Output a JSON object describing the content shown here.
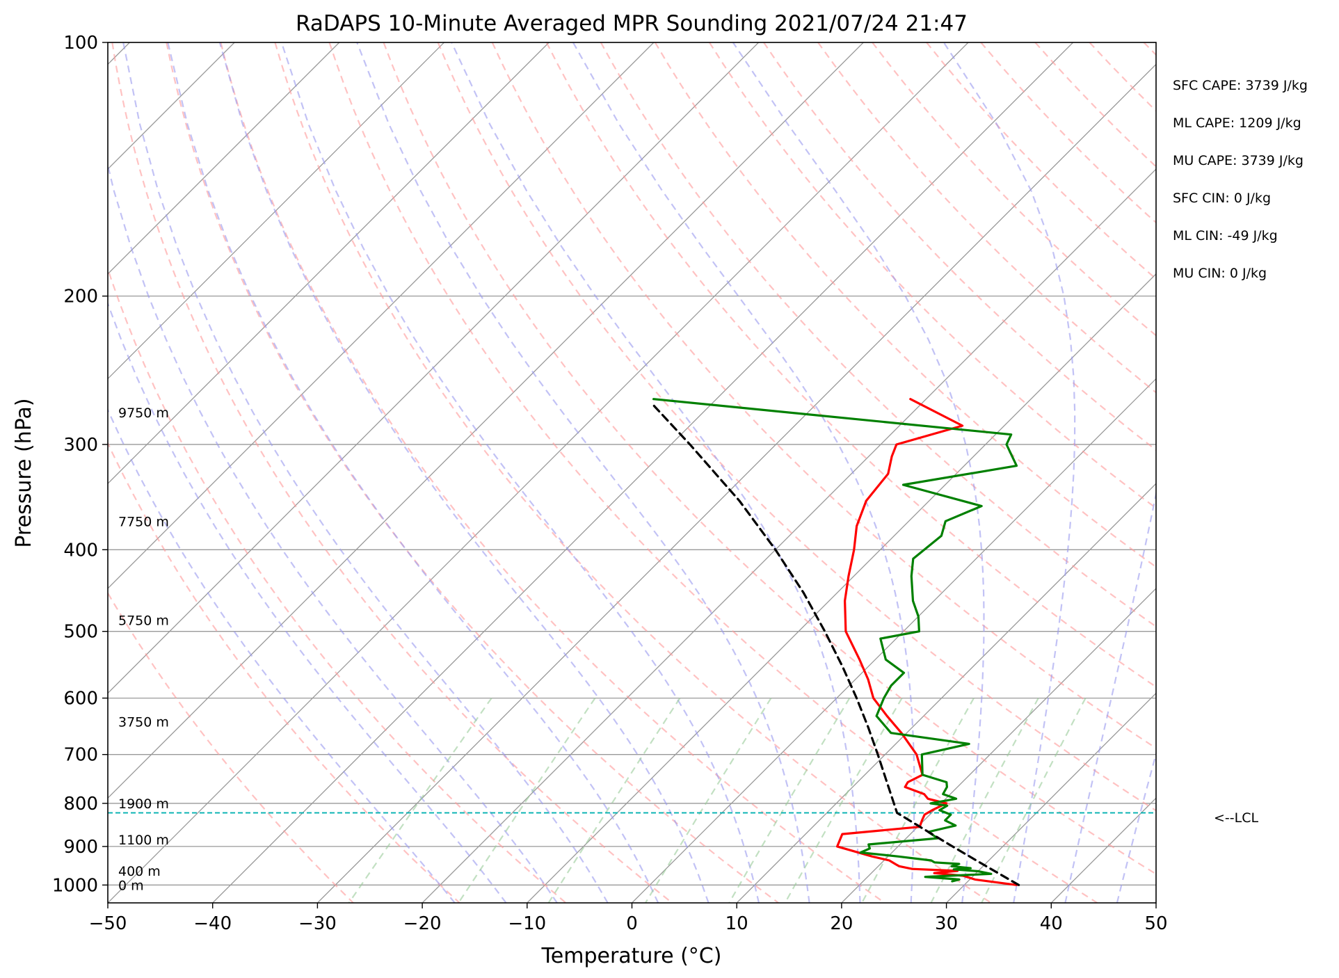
{
  "chart_data": {
    "type": "line",
    "title": "RaDAPS 10-Minute Averaged MPR Sounding 2021/07/24 21:47",
    "xlabel": "Temperature (°C)",
    "ylabel": "Pressure (hPa)",
    "xlim": [
      -50,
      50
    ],
    "ylim": [
      1050,
      100
    ],
    "y_scale": "log",
    "skew_diagram": true,
    "x_ticks": [
      -50,
      -40,
      -30,
      -20,
      -10,
      0,
      10,
      20,
      30,
      40,
      50
    ],
    "x_tick_labels": [
      "−50",
      "−40",
      "−30",
      "−20",
      "−10",
      "0",
      "10",
      "20",
      "30",
      "40",
      "50"
    ],
    "y_ticks": [
      100,
      200,
      300,
      400,
      500,
      600,
      700,
      800,
      900,
      1000
    ],
    "y_tick_labels": [
      "100",
      "200",
      "300",
      "400",
      "500",
      "600",
      "700",
      "800",
      "900",
      "1000"
    ],
    "grid": true,
    "series": [
      {
        "role": "temperature",
        "color": "#ff0000",
        "p": [
          1000,
          985,
          975,
          968,
          962,
          957,
          950,
          945,
          935,
          925,
          900,
          870,
          853,
          838,
          825,
          815,
          800,
          790,
          780,
          765,
          755,
          740,
          700,
          660,
          630,
          600,
          570,
          540,
          500,
          460,
          430,
          400,
          375,
          350,
          325,
          310,
          300,
          285,
          265
        ],
        "t": [
          35.0,
          30.5,
          29.0,
          26.0,
          28.0,
          23.5,
          22.0,
          21.5,
          20.5,
          18.5,
          14.2,
          13.5,
          20.2,
          19.8,
          19.5,
          19.8,
          20.5,
          18.3,
          17.5,
          15.0,
          14.8,
          15.5,
          13.0,
          9.5,
          6.5,
          3.5,
          1.2,
          -1.5,
          -5.5,
          -8.5,
          -10.5,
          -12.5,
          -14.5,
          -16.0,
          -16.5,
          -17.8,
          -18.5,
          -14.0,
          -21.5
        ]
      },
      {
        "role": "dewpoint",
        "color": "#008000",
        "p": [
          990,
          985,
          978,
          970,
          963,
          958,
          955,
          950,
          944,
          940,
          935,
          925,
          915,
          905,
          895,
          880,
          865,
          850,
          838,
          825,
          815,
          805,
          800,
          790,
          780,
          765,
          755,
          740,
          700,
          680,
          660,
          630,
          600,
          580,
          560,
          540,
          510,
          500,
          480,
          460,
          430,
          410,
          385,
          370,
          355,
          335,
          318,
          300,
          292,
          265
        ],
        "t": [
          28.5,
          29.0,
          25.5,
          31.5,
          30.0,
          27.5,
          29.0,
          27.0,
          27.5,
          25.0,
          24.5,
          21.0,
          17.0,
          17.5,
          17.0,
          23.0,
          21.5,
          23.5,
          22.0,
          22.0,
          20.5,
          20.8,
          19.0,
          21.0,
          19.3,
          19.0,
          18.5,
          15.5,
          13.5,
          17.0,
          8.5,
          5.5,
          4.5,
          4.0,
          4.0,
          1.0,
          -1.5,
          1.5,
          0.0,
          -2.0,
          -4.5,
          -6.0,
          -5.5,
          -6.5,
          -4.5,
          -14.0,
          -5.0,
          -8.0,
          -8.5,
          -46.0
        ]
      },
      {
        "role": "parcel",
        "color": "#000000",
        "dashed": true,
        "p": [
          1000,
          950,
          900,
          850,
          821,
          800,
          750,
          700,
          650,
          600,
          550,
          500,
          450,
          400,
          350,
          300,
          270
        ],
        "t": [
          35.2,
          30.3,
          25.2,
          19.9,
          16.7,
          15.5,
          12.5,
          9.3,
          5.8,
          1.9,
          -2.5,
          -7.5,
          -13.2,
          -20.0,
          -28.1,
          -38.2,
          -45.3
        ]
      }
    ],
    "dry_adiabats_color": "#ff9999",
    "moist_adiabats_color": "#9999ee",
    "mixing_ratio_lines_color": "#99cc99",
    "isotherm_color": "#999999",
    "lcl": {
      "pressure": 821,
      "label": "<--LCL",
      "color": "#00b0b0"
    },
    "height_labels": [
      {
        "p": 1000,
        "text": "0 m"
      },
      {
        "p": 962,
        "text": "400 m"
      },
      {
        "p": 883,
        "text": "1100 m"
      },
      {
        "p": 800,
        "text": "1900 m"
      },
      {
        "p": 640,
        "text": "3750 m"
      },
      {
        "p": 485,
        "text": "5750 m"
      },
      {
        "p": 370,
        "text": "7750 m"
      },
      {
        "p": 275,
        "text": "9750 m"
      }
    ],
    "annotations": [
      "SFC CAPE: 3739 J/kg",
      "ML CAPE: 1209 J/kg",
      "MU CAPE: 3739 J/kg",
      "SFC CIN: 0 J/kg",
      "ML CIN: -49 J/kg",
      "MU CIN: 0 J/kg"
    ]
  }
}
